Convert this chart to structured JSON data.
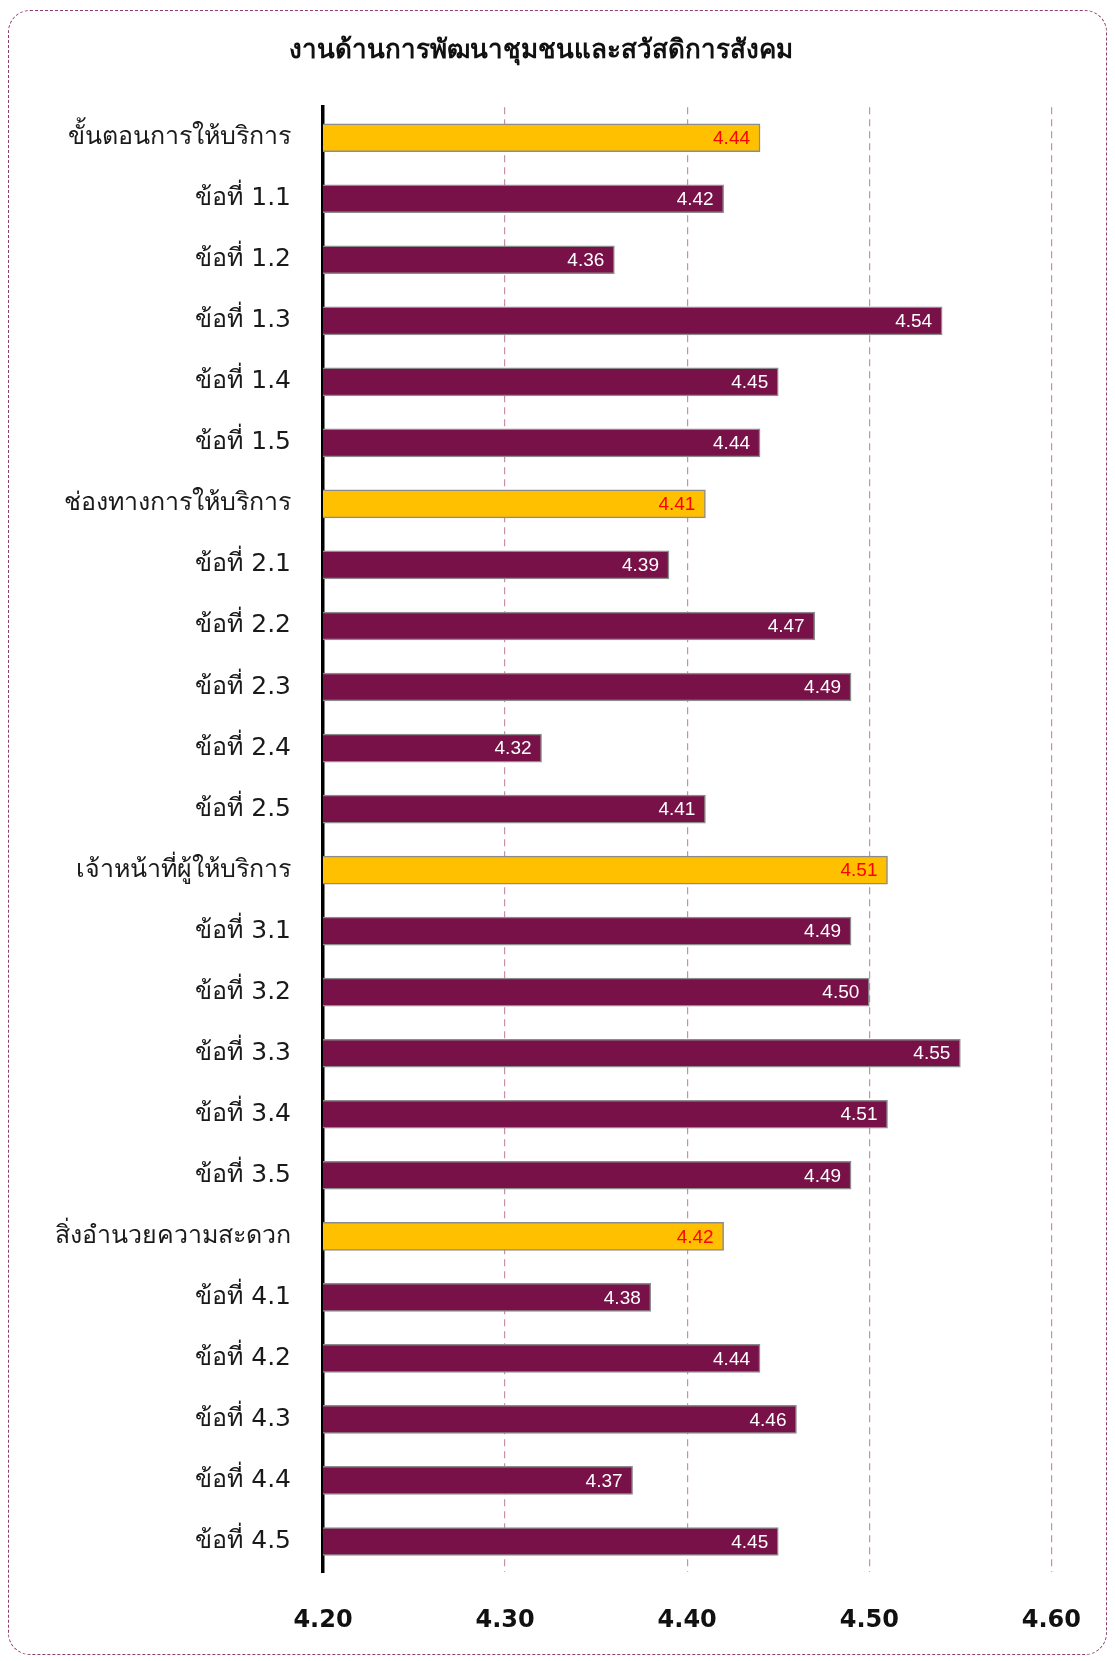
{
  "chart_data": {
    "type": "bar",
    "orientation": "horizontal",
    "title": "งานด้านการพัฒนาชุมชนและสวัสดิการสังคม",
    "categories": [
      "ขั้นตอนการให้บริการ",
      "ข้อที่ 1.1",
      "ข้อที่ 1.2",
      "ข้อที่ 1.3",
      "ข้อที่ 1.4",
      "ข้อที่ 1.5",
      "ช่องทางการให้บริการ",
      "ข้อที่ 2.1",
      "ข้อที่ 2.2",
      "ข้อที่ 2.3",
      "ข้อที่ 2.4",
      "ข้อที่ 2.5",
      "เจ้าหน้าที่ผู้ให้บริการ",
      "ข้อที่ 3.1",
      "ข้อที่ 3.2",
      "ข้อที่ 3.3",
      "ข้อที่ 3.4",
      "ข้อที่ 3.5",
      "สิ่งอำนวยความสะดวก",
      "ข้อที่ 4.1",
      "ข้อที่ 4.2",
      "ข้อที่ 4.3",
      "ข้อที่ 4.4",
      "ข้อที่ 4.5"
    ],
    "values": [
      4.44,
      4.42,
      4.36,
      4.54,
      4.45,
      4.44,
      4.41,
      4.39,
      4.47,
      4.49,
      4.32,
      4.41,
      4.51,
      4.49,
      4.5,
      4.55,
      4.51,
      4.49,
      4.42,
      4.38,
      4.44,
      4.46,
      4.37,
      4.45
    ],
    "value_labels": [
      "4.44",
      "4.42",
      "4.36",
      "4.54",
      "4.45",
      "4.44",
      "4.41",
      "4.39",
      "4.47",
      "4.49",
      "4.32",
      "4.41",
      "4.51",
      "4.49",
      "4.50",
      "4.55",
      "4.51",
      "4.49",
      "4.42",
      "4.38",
      "4.44",
      "4.46",
      "4.37",
      "4.45"
    ],
    "colors": [
      "#ffc000",
      "#771148",
      "#771148",
      "#771148",
      "#771148",
      "#771148",
      "#ffc000",
      "#771148",
      "#771148",
      "#771148",
      "#771148",
      "#771148",
      "#ffc000",
      "#771148",
      "#771148",
      "#771148",
      "#771148",
      "#771148",
      "#ffc000",
      "#771148",
      "#771148",
      "#771148",
      "#771148",
      "#771148"
    ],
    "xlim": [
      4.2,
      4.6
    ],
    "xticks": [
      {
        "value": 4.2,
        "label": "4.20"
      },
      {
        "value": 4.3,
        "label": "4.30"
      },
      {
        "value": 4.4,
        "label": "4.40"
      },
      {
        "value": 4.5,
        "label": "4.50"
      },
      {
        "value": 4.6,
        "label": "4.60"
      }
    ],
    "grid": "x"
  }
}
